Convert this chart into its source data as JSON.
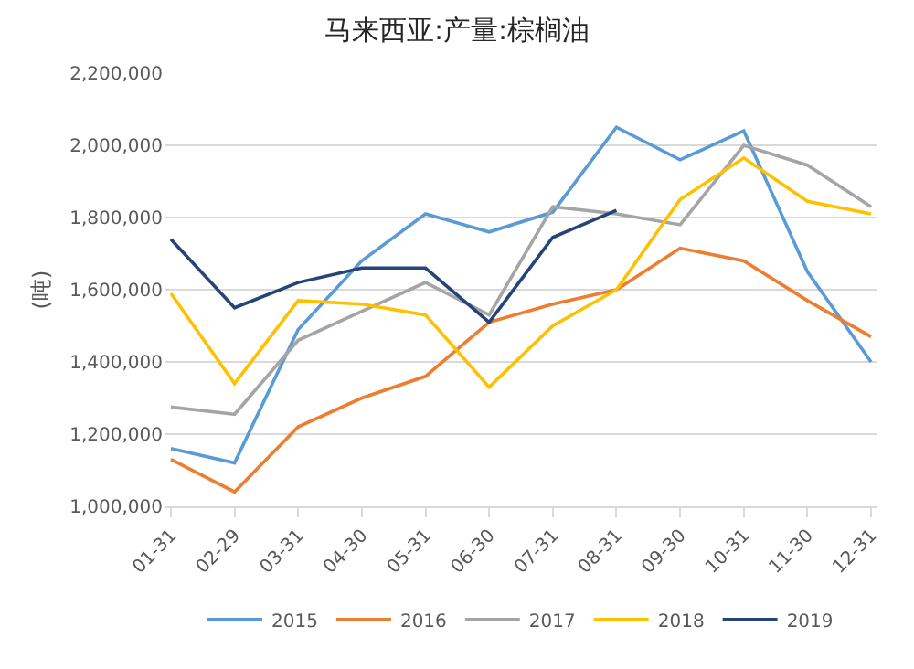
{
  "chart_data": {
    "type": "line",
    "title": "马来西亚:产量:棕榈油",
    "ylabel": "(吨)",
    "categories": [
      "01-31",
      "02-29",
      "03-31",
      "04-30",
      "05-31",
      "06-30",
      "07-31",
      "08-31",
      "09-30",
      "10-31",
      "11-30",
      "12-31"
    ],
    "series": [
      {
        "name": "2015",
        "color": "#5b9bd5",
        "values": [
          1160000,
          1120000,
          1490000,
          1680000,
          1810000,
          1760000,
          1815000,
          2050000,
          1960000,
          2040000,
          1650000,
          1400000
        ]
      },
      {
        "name": "2016",
        "color": "#ed7d31",
        "values": [
          1130000,
          1040000,
          1220000,
          1300000,
          1360000,
          1510000,
          1560000,
          1600000,
          1715000,
          1680000,
          1570000,
          1470000
        ]
      },
      {
        "name": "2017",
        "color": "#a5a5a5",
        "values": [
          1275000,
          1255000,
          1460000,
          1540000,
          1620000,
          1530000,
          1830000,
          1810000,
          1780000,
          2000000,
          1945000,
          1830000
        ]
      },
      {
        "name": "2018",
        "color": "#ffc000",
        "values": [
          1590000,
          1340000,
          1570000,
          1560000,
          1530000,
          1330000,
          1500000,
          1600000,
          1850000,
          1965000,
          1845000,
          1810000
        ]
      },
      {
        "name": "2019",
        "color": "#264478",
        "values": [
          1740000,
          1550000,
          1620000,
          1660000,
          1660000,
          1510000,
          1745000,
          1820000,
          null,
          null,
          null,
          null
        ]
      }
    ],
    "ylim": [
      1000000,
      2200000
    ],
    "yticks": [
      {
        "value": 1000000,
        "label": "1,000,000"
      },
      {
        "value": 1200000,
        "label": "1,200,000"
      },
      {
        "value": 1400000,
        "label": "1,400,000"
      },
      {
        "value": 1600000,
        "label": "1,600,000"
      },
      {
        "value": 1800000,
        "label": "1,800,000"
      },
      {
        "value": 2000000,
        "label": "2,000,000"
      },
      {
        "value": 2200000,
        "label": "2,200,000"
      }
    ],
    "grid": "y",
    "legend": "bottom",
    "marker": "none",
    "line_style": "solid"
  }
}
